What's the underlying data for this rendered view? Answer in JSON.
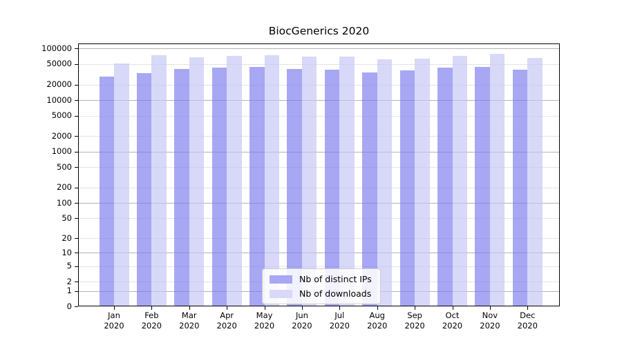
{
  "chart_data": {
    "type": "bar",
    "title": "BiocGenerics 2020",
    "categories": [
      "Jan",
      "Feb",
      "Mar",
      "Apr",
      "May",
      "Jun",
      "Jul",
      "Aug",
      "Sep",
      "Oct",
      "Nov",
      "Dec"
    ],
    "category_year": "2020",
    "series": [
      {
        "name": "Nb of distinct IPs",
        "color_solid": "#a7a7f4",
        "color_bar": "rgba(120,120,238,0.65)",
        "values": [
          28500,
          33300,
          39700,
          42200,
          43900,
          40900,
          38800,
          34800,
          37600,
          42500,
          43900,
          38800
        ]
      },
      {
        "name": "Nb of downloads",
        "color_solid": "#d8d8f9",
        "color_bar": "rgba(195,195,246,0.65)",
        "values": [
          52300,
          75700,
          67600,
          71900,
          75700,
          70600,
          69700,
          61700,
          64400,
          73400,
          79800,
          65600
        ]
      }
    ],
    "y_ticks": [
      0,
      1,
      2,
      5,
      10,
      20,
      50,
      100,
      200,
      500,
      1000,
      2000,
      5000,
      10000,
      20000,
      50000,
      100000
    ],
    "y_major_ticks": [
      0,
      1,
      10,
      100,
      1000,
      10000,
      100000
    ],
    "yscale": "log10(1+v)",
    "ylim": [
      0,
      123000
    ],
    "grid": true,
    "legend_position": "bottom-center"
  },
  "colors": {
    "grid_major": "#b3b3b3",
    "grid_minor": "#e4e4e4",
    "axis": "#000000",
    "background": "#ffffff"
  }
}
